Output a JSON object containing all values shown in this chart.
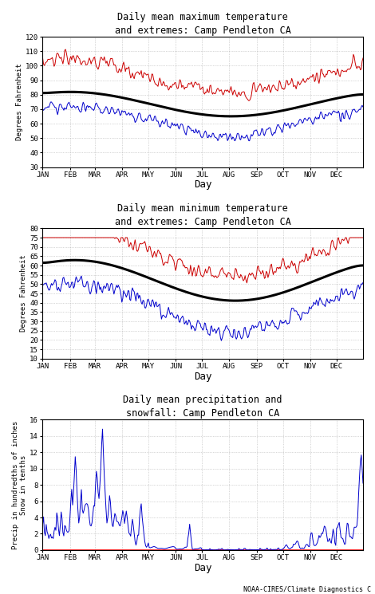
{
  "title1": "Daily mean maximum temperature\nand extremes: Camp Pendleton CA",
  "title2": "Daily mean minimum temperature\nand extremes: Camp Pendleton CA",
  "title3": "Daily mean precipitation and\nsnowfall: Camp Pendleton CA",
  "ylabel1": "Degrees Fahrenheit",
  "ylabel2": "Degrees Fahrenheit",
  "ylabel3": "Precip in hundredths of inches\nSnow in tenths",
  "xlabel": "Day",
  "months": [
    "JAN",
    "FEB",
    "MAR",
    "APR",
    "MAY",
    "JUN",
    "JUL",
    "AUG",
    "SEP",
    "OCT",
    "NOV",
    "DEC"
  ],
  "ylim1": [
    30,
    120
  ],
  "ylim2": [
    10,
    80
  ],
  "ylim3": [
    0,
    16
  ],
  "yticks1": [
    30,
    40,
    50,
    60,
    70,
    80,
    90,
    100,
    110,
    120
  ],
  "yticks2": [
    10,
    15,
    20,
    25,
    30,
    35,
    40,
    45,
    50,
    55,
    60,
    65,
    70,
    75,
    80
  ],
  "yticks3": [
    0,
    2,
    4,
    6,
    8,
    10,
    12,
    14,
    16
  ],
  "line_color_red": "#cc0000",
  "line_color_blue": "#0000cc",
  "line_color_black": "#000000",
  "bg_color": "#ffffff",
  "grid_color": "#aaaaaa",
  "footer": "NOAA-CIRES/Climate Diagnostics C"
}
